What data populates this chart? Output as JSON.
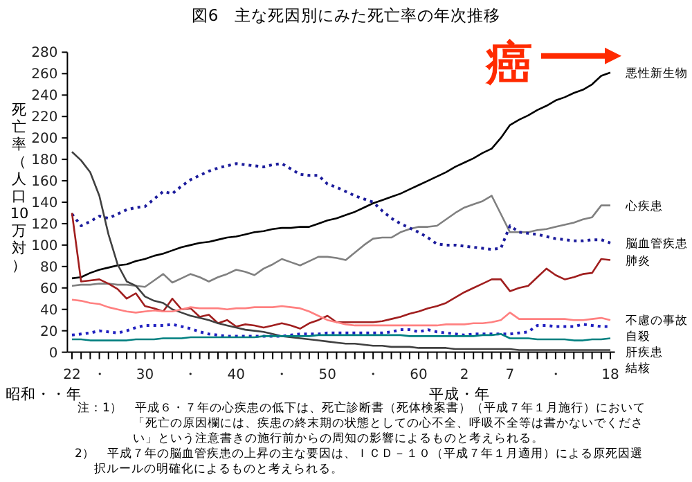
{
  "chart_data": {
    "type": "line",
    "title": "図6　主な死因別にみた死亡率の年次推移",
    "xlabel": "昭和・・年",
    "ylabel": "死亡率（人口10万対）",
    "ylim": [
      0,
      280
    ],
    "yticks": [
      0,
      20,
      40,
      60,
      80,
      100,
      120,
      140,
      160,
      180,
      200,
      220,
      240,
      260,
      280
    ],
    "categories": [
      "22",
      null,
      null,
      "・",
      null,
      null,
      null,
      null,
      "30",
      null,
      null,
      null,
      null,
      "・",
      null,
      null,
      null,
      null,
      "40",
      null,
      null,
      null,
      null,
      "・",
      null,
      null,
      null,
      null,
      "50",
      null,
      null,
      null,
      null,
      "・",
      null,
      null,
      null,
      null,
      "60",
      null,
      null,
      null,
      null,
      "2",
      null,
      null,
      null,
      null,
      "7",
      null,
      null,
      null,
      null,
      "・",
      null,
      null,
      null,
      null,
      null,
      "18"
    ],
    "grid": false,
    "legend": false,
    "marker": "none",
    "series": [
      {
        "name": "悪性新生物",
        "color": "#000000",
        "line_style": "solid",
        "values": [
          69,
          70,
          74,
          77,
          79,
          81,
          82,
          85,
          87,
          90,
          92,
          95,
          98,
          100,
          102,
          103,
          105,
          107,
          108,
          110,
          112,
          113,
          115,
          116,
          116,
          117,
          117,
          120,
          123,
          125,
          128,
          131,
          135,
          139,
          142,
          145,
          148,
          152,
          156,
          160,
          164,
          168,
          173,
          177,
          181,
          186,
          190,
          200,
          212,
          217,
          221,
          226,
          230,
          235,
          238,
          242,
          245,
          250,
          258,
          261
        ]
      },
      {
        "name": "心疾患",
        "color": "#808080",
        "line_style": "solid",
        "values": [
          62,
          63,
          63,
          64,
          64,
          63,
          63,
          62,
          61,
          67,
          73,
          65,
          69,
          73,
          70,
          66,
          70,
          73,
          77,
          75,
          72,
          78,
          82,
          87,
          84,
          81,
          85,
          89,
          89,
          88,
          86,
          93,
          100,
          106,
          107,
          107,
          112,
          115,
          117,
          117,
          118,
          124,
          130,
          135,
          138,
          141,
          146,
          129,
          112,
          112,
          112,
          114,
          115,
          117,
          119,
          121,
          124,
          126,
          137,
          137
        ]
      },
      {
        "name": "脳血管疾患",
        "color": "#1c1c9c",
        "line_style": "dotted",
        "values": [
          129,
          118,
          122,
          127,
          125,
          129,
          133,
          135,
          136,
          143,
          150,
          148,
          155,
          161,
          165,
          169,
          172,
          174,
          176,
          175,
          174,
          173,
          175,
          176,
          171,
          166,
          165,
          165,
          157,
          154,
          150,
          146,
          143,
          140,
          132,
          125,
          120,
          116,
          112,
          107,
          101,
          100,
          100,
          99,
          98,
          97,
          96,
          97,
          118,
          112,
          111,
          110,
          108,
          106,
          105,
          104,
          104,
          105,
          105,
          102
        ]
      },
      {
        "name": "肺炎",
        "color": "#a01e1e",
        "line_style": "solid",
        "values": [
          130,
          66,
          67,
          68,
          64,
          59,
          50,
          55,
          43,
          41,
          38,
          50,
          40,
          41,
          33,
          35,
          27,
          30,
          24,
          26,
          25,
          23,
          25,
          27,
          25,
          22,
          27,
          30,
          34,
          28,
          28,
          28,
          28,
          28,
          29,
          31,
          33,
          36,
          38,
          41,
          43,
          46,
          51,
          56,
          60,
          64,
          68,
          68,
          57,
          60,
          62,
          70,
          78,
          72,
          68,
          70,
          73,
          74,
          87,
          86
        ]
      },
      {
        "name": "結核",
        "color": "#404040",
        "line_style": "solid",
        "values": [
          187,
          179,
          168,
          146,
          110,
          82,
          66,
          62,
          52,
          48,
          46,
          40,
          37,
          34,
          32,
          30,
          27,
          25,
          23,
          21,
          20,
          19,
          17,
          15,
          14,
          13,
          12,
          11,
          10,
          9,
          8,
          8,
          7,
          6,
          6,
          5,
          5,
          5,
          4,
          4,
          4,
          4,
          3,
          3,
          3,
          3,
          3,
          3,
          3,
          2,
          2,
          2,
          2,
          2,
          2,
          2,
          2,
          2,
          2,
          2
        ]
      },
      {
        "name": "不慮の事故",
        "color": "#ff8080",
        "line_style": "solid",
        "values": [
          49,
          48,
          46,
          45,
          42,
          40,
          38,
          37,
          38,
          39,
          38,
          38,
          40,
          42,
          41,
          41,
          41,
          40,
          41,
          41,
          42,
          42,
          42,
          43,
          42,
          41,
          38,
          34,
          30,
          28,
          26,
          25,
          25,
          25,
          25,
          25,
          25,
          25,
          25,
          25,
          25,
          26,
          26,
          26,
          27,
          27,
          28,
          30,
          37,
          31,
          31,
          31,
          31,
          31,
          31,
          30,
          30,
          31,
          32,
          30
        ]
      },
      {
        "name": "自殺",
        "color": "#2020c0",
        "line_style": "dotted",
        "values": [
          16,
          17,
          18,
          20,
          19,
          18,
          20,
          23,
          25,
          25,
          25,
          26,
          24,
          22,
          19,
          17,
          16,
          15,
          15,
          15,
          15,
          15,
          15,
          15,
          16,
          17,
          17,
          17,
          18,
          18,
          18,
          18,
          18,
          18,
          18,
          19,
          21,
          21,
          19,
          21,
          19,
          18,
          17,
          16,
          17,
          17,
          17,
          17,
          17,
          18,
          19,
          25,
          25,
          24,
          24,
          24,
          26,
          25,
          24,
          24
        ]
      },
      {
        "name": "肝疾患",
        "color": "#008080",
        "line_style": "solid",
        "values": [
          12,
          12,
          11,
          11,
          11,
          11,
          11,
          12,
          12,
          12,
          13,
          13,
          13,
          14,
          14,
          14,
          14,
          14,
          14,
          14,
          14,
          15,
          15,
          15,
          15,
          15,
          15,
          16,
          16,
          16,
          16,
          16,
          16,
          16,
          16,
          16,
          16,
          15,
          15,
          15,
          15,
          15,
          15,
          15,
          15,
          16,
          16,
          17,
          13,
          13,
          13,
          12,
          12,
          12,
          12,
          11,
          11,
          12,
          12,
          13
        ]
      }
    ],
    "annotations": [
      {
        "text": "癌",
        "x": "18",
        "y": 261
      },
      "平成・年",
      "注：1）　平成６・７年の心疾患の低下は、死亡診断書（死体検案書）（平成７年１月施行）において「死亡の原因欄には、疾患の終末期の状態としての心不全、呼吸不全等は書かないでください」という注意書きの施行前からの周知の影響によるものと考えられる。",
      "2）　平成７年の脳血管疾患の上昇の主な要因は、ＩＣＤ－１０（平成７年１月適用）による原死因選択ルールの明確化によるものと考えられる。"
    ]
  }
}
